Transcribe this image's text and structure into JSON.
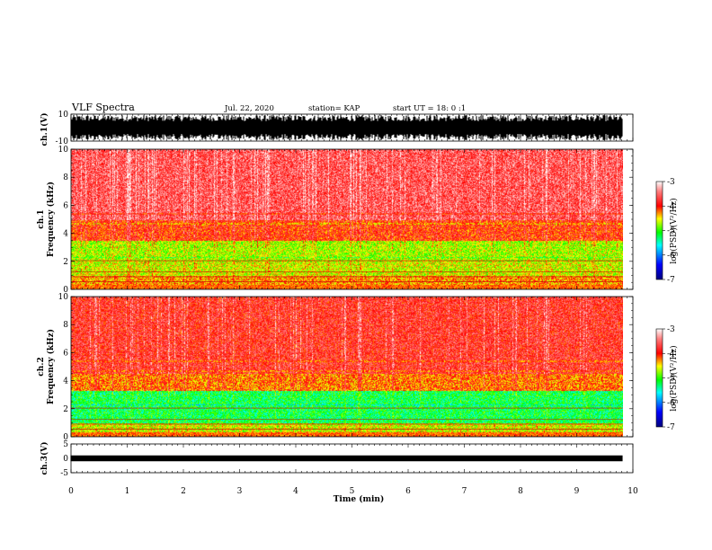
{
  "header": {
    "title": "VLF Spectra",
    "date": "Jul. 22, 2020",
    "station": "station= KAP",
    "start": "start UT =  18: 0 :1"
  },
  "colors": {
    "waveform": "#000000",
    "colormap": [
      "#00007f",
      "#0000ff",
      "#00ffff",
      "#00ff00",
      "#ffff00",
      "#ff0000",
      "#ffffff"
    ]
  },
  "chart_data": [
    {
      "type": "line",
      "name": "ch1-waveform",
      "ylabel": "ch.1(V)",
      "ylim": [
        -10,
        10
      ],
      "ytick_labels": [
        "10",
        "-10"
      ],
      "xlim": [
        0,
        10
      ],
      "signal_span": [
        0,
        9.82
      ]
    },
    {
      "type": "heatmap",
      "name": "ch1-spectrogram",
      "ylabel": "ch.1\nFrequency (kHz)",
      "ylim": [
        0,
        10
      ],
      "yticks": [
        "0",
        "2",
        "4",
        "6",
        "8",
        "10"
      ],
      "xlim": [
        0,
        10
      ],
      "signal_span": [
        0,
        9.82
      ],
      "colorbar": {
        "label": "log(PSD)(V²/Hz)",
        "range": [
          -7,
          -3
        ],
        "ticks": [
          "-3",
          "-4",
          "-5",
          "-6",
          "-7"
        ]
      },
      "band_profile_khz": [
        [
          0.0,
          1.0,
          -4.3
        ],
        [
          1.0,
          2.0,
          -4.6
        ],
        [
          2.0,
          3.5,
          -4.7
        ],
        [
          3.5,
          5.0,
          -4.0
        ],
        [
          5.0,
          10.0,
          -3.6
        ]
      ]
    },
    {
      "type": "heatmap",
      "name": "ch2-spectrogram",
      "ylabel": "ch.2\nFrequency (kHz)",
      "ylim": [
        0,
        10
      ],
      "yticks": [
        "0",
        "2",
        "4",
        "6",
        "8",
        "10"
      ],
      "xlim": [
        0,
        10
      ],
      "signal_span": [
        0,
        9.82
      ],
      "colorbar": {
        "label": "log(PSD)(V²/Hz)",
        "range": [
          -7,
          -3
        ],
        "ticks": [
          "-3",
          "-4",
          "-5",
          "-6",
          "-7"
        ]
      },
      "band_profile_khz": [
        [
          0.0,
          1.0,
          -4.6
        ],
        [
          1.0,
          3.3,
          -5.2
        ],
        [
          3.3,
          4.5,
          -4.2
        ],
        [
          4.5,
          10.0,
          -3.8
        ]
      ]
    },
    {
      "type": "line",
      "name": "ch3-waveform",
      "ylabel": "ch.3(V)",
      "ylim": [
        -5,
        5
      ],
      "ytick_labels": [
        "5",
        "0",
        "-5"
      ],
      "xlim": [
        0,
        10
      ],
      "signal_span": [
        0,
        9.82
      ]
    }
  ],
  "xaxis": {
    "label": "Time (min)",
    "ticks": [
      "0",
      "1",
      "2",
      "3",
      "4",
      "5",
      "6",
      "7",
      "8",
      "9",
      "10"
    ]
  }
}
